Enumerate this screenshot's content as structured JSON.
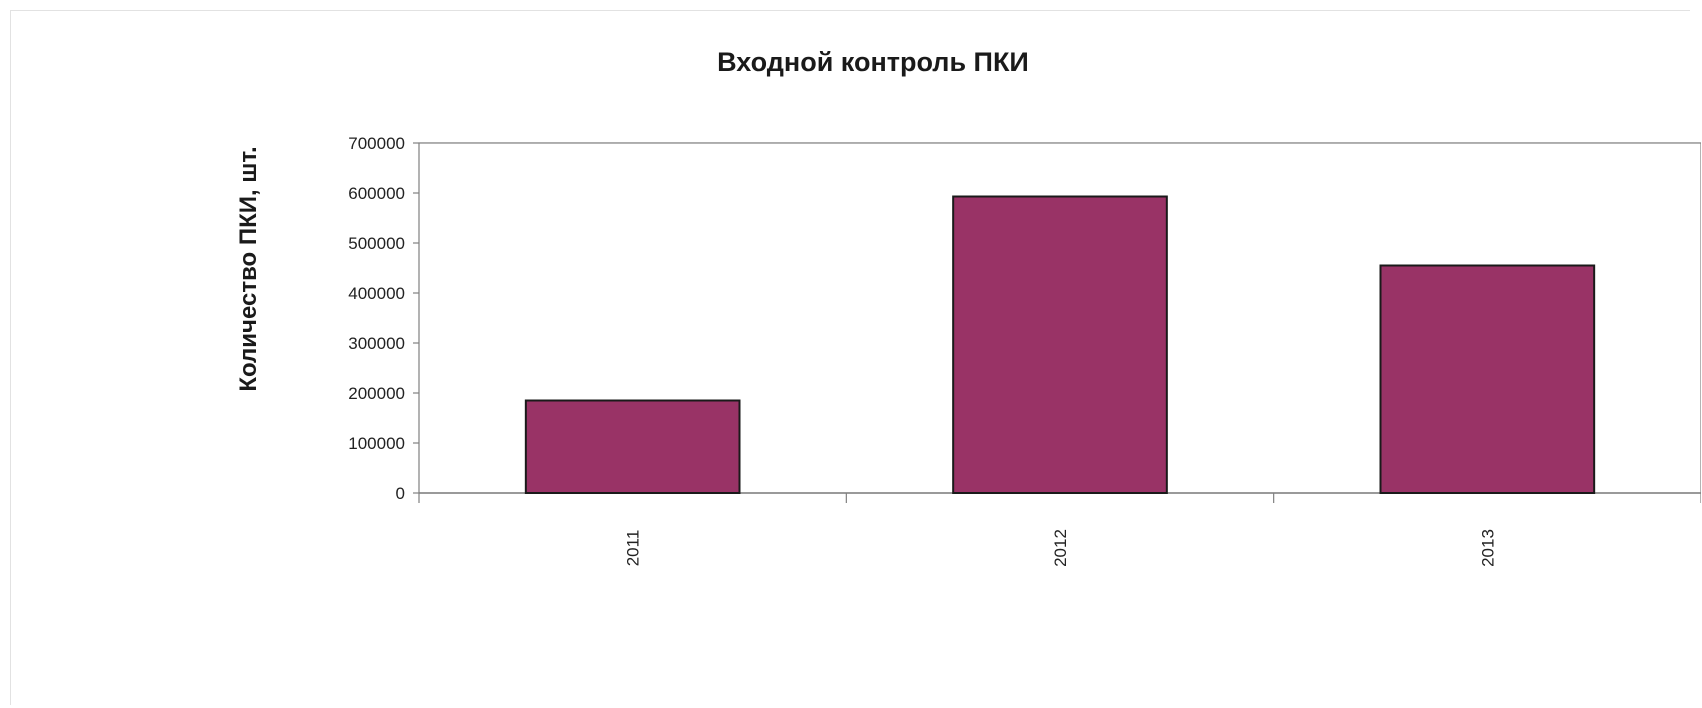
{
  "chart_data": {
    "type": "bar",
    "title": "Входной контроль ПКИ",
    "xlabel": "",
    "ylabel": "Количество ПКИ, шт.",
    "categories": [
      "2011",
      "2012",
      "2013"
    ],
    "values": [
      185000,
      593000,
      455000
    ],
    "ylim": [
      0,
      700000
    ],
    "yticks": [
      "0",
      "100000",
      "200000",
      "300000",
      "400000",
      "500000",
      "600000",
      "700000"
    ],
    "grid": true,
    "legend": "none",
    "bar_color": "#993366",
    "bar_edge_color": "#1a1a1a",
    "grid_color": "#bdbdbd",
    "axis_color": "#808080"
  }
}
